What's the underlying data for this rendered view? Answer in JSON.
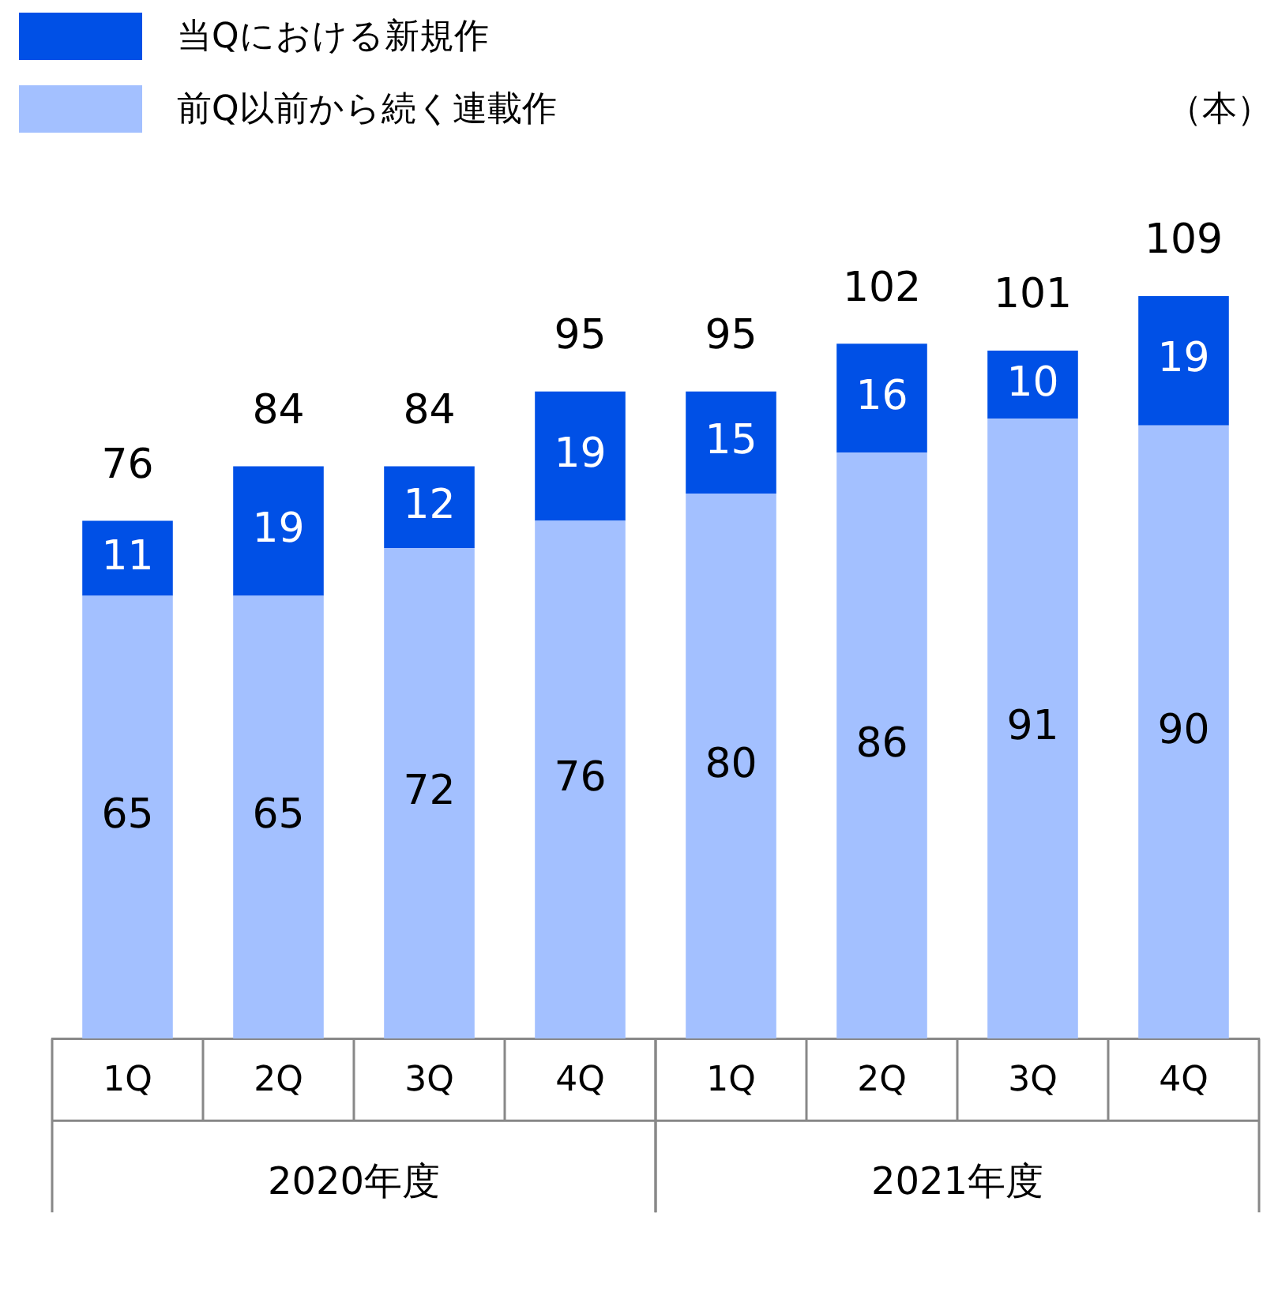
{
  "chart_data": {
    "type": "bar",
    "stacked": true,
    "categories": [
      "1Q",
      "2Q",
      "3Q",
      "4Q",
      "1Q",
      "2Q",
      "3Q",
      "4Q"
    ],
    "series": [
      {
        "name": "前Q以前から続く連載作",
        "color": "#a3c0ff",
        "values": [
          65,
          65,
          72,
          76,
          80,
          86,
          91,
          90
        ]
      },
      {
        "name": "当Qにおける新規作",
        "color": "#0050e6",
        "values": [
          11,
          19,
          12,
          19,
          15,
          16,
          10,
          19
        ]
      }
    ],
    "totals": [
      "76",
      "84",
      "84",
      "95",
      "95",
      "102",
      "101",
      "109"
    ],
    "data_labels": true,
    "ylabel": "（本）",
    "tick_labels": "x",
    "grid": false,
    "legend": "top left",
    "annotations": [
      "2020年度",
      "2021年度"
    ]
  }
}
